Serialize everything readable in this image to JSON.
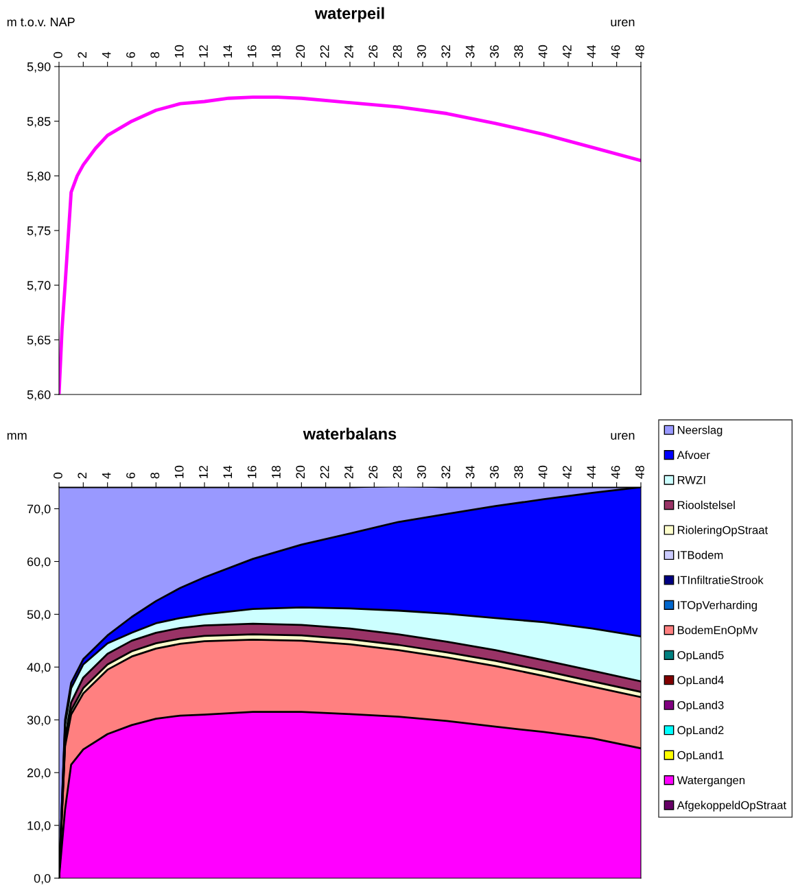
{
  "chart_data": [
    {
      "type": "line",
      "title": "waterpeil",
      "ylabel": "m t.o.v. NAP",
      "xlabel": "uren",
      "grid": false,
      "legend": false,
      "line_style": "solid",
      "xlim": [
        0,
        48
      ],
      "xticks": [
        0,
        2,
        4,
        6,
        8,
        10,
        12,
        14,
        16,
        18,
        20,
        22,
        24,
        26,
        28,
        30,
        32,
        34,
        36,
        38,
        40,
        42,
        44,
        46,
        48
      ],
      "ylim": [
        5.6,
        5.9
      ],
      "yticks": [
        {
          "value": 5.6,
          "label": "5,60"
        },
        {
          "value": 5.65,
          "label": "5,65"
        },
        {
          "value": 5.7,
          "label": "5,70"
        },
        {
          "value": 5.75,
          "label": "5,75"
        },
        {
          "value": 5.8,
          "label": "5,80"
        },
        {
          "value": 5.85,
          "label": "5,85"
        },
        {
          "value": 5.9,
          "label": "5,90"
        }
      ],
      "x": [
        0,
        0.25,
        0.5,
        1,
        1.5,
        2,
        3,
        4,
        6,
        8,
        10,
        12,
        14,
        16,
        18,
        20,
        24,
        28,
        32,
        36,
        40,
        44,
        48
      ],
      "series": [
        {
          "color": "#ff00ff",
          "values": [
            5.6,
            5.66,
            5.7,
            5.785,
            5.8,
            5.81,
            5.825,
            5.837,
            5.85,
            5.86,
            5.866,
            5.868,
            5.871,
            5.872,
            5.872,
            5.871,
            5.867,
            5.863,
            5.857,
            5.848,
            5.838,
            5.826,
            5.814
          ]
        }
      ]
    },
    {
      "type": "area",
      "stacked": true,
      "title": "waterbalans",
      "ylabel": "mm",
      "xlabel": "uren",
      "grid": false,
      "legend": "right",
      "xlim": [
        0,
        48
      ],
      "xticks": [
        0,
        2,
        4,
        6,
        8,
        10,
        12,
        14,
        16,
        18,
        20,
        22,
        24,
        26,
        28,
        30,
        32,
        34,
        36,
        38,
        40,
        42,
        44,
        46,
        48
      ],
      "ylim": [
        0,
        74.1
      ],
      "yticks": [
        {
          "value": 0,
          "label": "0,0"
        },
        {
          "value": 10,
          "label": "10,0"
        },
        {
          "value": 20,
          "label": "20,0"
        },
        {
          "value": 30,
          "label": "30,0"
        },
        {
          "value": 40,
          "label": "40,0"
        },
        {
          "value": 50,
          "label": "50,0"
        },
        {
          "value": 60,
          "label": "60,0"
        },
        {
          "value": 70,
          "label": "70,0"
        }
      ],
      "x": [
        0,
        0.5,
        1,
        2,
        4,
        6,
        8,
        10,
        12,
        16,
        20,
        24,
        28,
        32,
        36,
        40,
        44,
        48
      ],
      "series": [
        {
          "name": "AfgekoppeldOpStraat",
          "color": "#660066",
          "values": [
            null,
            null,
            null,
            null,
            null,
            null,
            null,
            null,
            null,
            null,
            null,
            null,
            null,
            null,
            null,
            null,
            null,
            null
          ]
        },
        {
          "name": "Watergangen",
          "color": "#ff00ff",
          "values": [
            0,
            13,
            21.5,
            24.4,
            27.3,
            29,
            30.2,
            30.8,
            31,
            31.5,
            31.5,
            31.1,
            30.6,
            29.8,
            28.7,
            27.7,
            26.5,
            24.6
          ]
        },
        {
          "name": "OpLand1",
          "color": "#ffff00",
          "values": [
            null,
            null,
            null,
            null,
            null,
            null,
            null,
            null,
            null,
            null,
            null,
            null,
            null,
            null,
            null,
            null,
            null,
            null
          ]
        },
        {
          "name": "OpLand2",
          "color": "#00ffff",
          "values": [
            null,
            null,
            null,
            null,
            null,
            null,
            null,
            null,
            null,
            null,
            null,
            null,
            null,
            null,
            null,
            null,
            null,
            null
          ]
        },
        {
          "name": "OpLand3",
          "color": "#800080",
          "values": [
            null,
            null,
            null,
            null,
            null,
            null,
            null,
            null,
            null,
            null,
            null,
            null,
            null,
            null,
            null,
            null,
            null,
            null
          ]
        },
        {
          "name": "OpLand4",
          "color": "#800000",
          "values": [
            null,
            null,
            null,
            null,
            null,
            null,
            null,
            null,
            null,
            null,
            null,
            null,
            null,
            null,
            null,
            null,
            null,
            null
          ]
        },
        {
          "name": "OpLand5",
          "color": "#008080",
          "values": [
            null,
            null,
            null,
            null,
            null,
            null,
            null,
            null,
            null,
            null,
            null,
            null,
            null,
            null,
            null,
            null,
            null,
            null
          ]
        },
        {
          "name": "BodemEnOpMv",
          "color": "#ff8080",
          "values": [
            0,
            12,
            9.5,
            10.6,
            12.2,
            13,
            13.3,
            13.6,
            13.9,
            13.7,
            13.5,
            13.2,
            12.6,
            12,
            11.5,
            10.6,
            9.8,
            9.7
          ]
        },
        {
          "name": "ITOpVerharding",
          "color": "#0066cc",
          "values": [
            null,
            null,
            null,
            null,
            null,
            null,
            null,
            null,
            null,
            null,
            null,
            null,
            null,
            null,
            null,
            null,
            null,
            null
          ]
        },
        {
          "name": "ITInfiltratieStrook",
          "color": "#000080",
          "values": [
            null,
            null,
            null,
            null,
            null,
            null,
            null,
            null,
            null,
            null,
            null,
            null,
            null,
            null,
            null,
            null,
            null,
            null
          ]
        },
        {
          "name": "ITBodem",
          "color": "#ccccff",
          "values": [
            null,
            null,
            null,
            null,
            null,
            null,
            null,
            null,
            null,
            null,
            null,
            null,
            null,
            null,
            null,
            null,
            null,
            null
          ]
        },
        {
          "name": "RioleringOpStraat",
          "color": "#ffffcc",
          "values": [
            0,
            0.5,
            0.8,
            1,
            1,
            1,
            1,
            1,
            1,
            1,
            1,
            1,
            1,
            1,
            1,
            1,
            1,
            1
          ]
        },
        {
          "name": "Rioolstelsel",
          "color": "#993366",
          "values": [
            0,
            1,
            1.5,
            2,
            2,
            2,
            2,
            2,
            2,
            2,
            2,
            2,
            2,
            2,
            2,
            2,
            2,
            2
          ]
        },
        {
          "name": "RWZI",
          "color": "#ccffff",
          "values": [
            0,
            2.5,
            2.7,
            2.5,
            2,
            1.5,
            1.8,
            1.9,
            2.1,
            2.8,
            3.3,
            3.8,
            4.5,
            5.3,
            6.1,
            7.2,
            8,
            8.5
          ]
        },
        {
          "name": "Afvoer",
          "color": "#0000ff",
          "values": [
            0,
            1,
            1,
            1,
            1.5,
            3,
            4.2,
            5.7,
            7,
            9.5,
            11.9,
            14.2,
            16.8,
            18.9,
            21.2,
            23.3,
            25.7,
            28.3
          ]
        },
        {
          "name": "Neerslag",
          "color": "#9999ff",
          "values": [
            74.1,
            44.1,
            37.1,
            32.6,
            28.1,
            24.6,
            21.6,
            19.1,
            17.1,
            13.6,
            10.9,
            8.8,
            6.8,
            5.1,
            3.6,
            2.3,
            1.1,
            0
          ]
        }
      ]
    }
  ]
}
